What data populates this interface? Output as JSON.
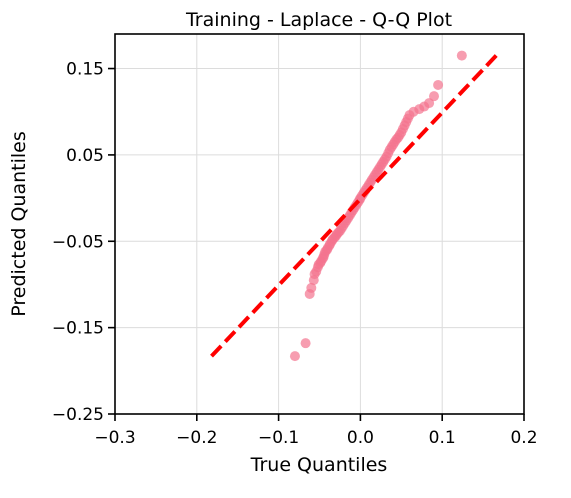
{
  "chart_data": {
    "type": "scatter",
    "title": "Training - Laplace - Q-Q Plot",
    "xlabel": "True Quantiles",
    "ylabel": "Predicted Quantiles",
    "xlim": [
      -0.3,
      0.2
    ],
    "ylim": [
      -0.25,
      0.19
    ],
    "xticks": [
      -0.3,
      -0.2,
      -0.1,
      0.0,
      0.1,
      0.2
    ],
    "xtick_labels": [
      "−0.3",
      "−0.2",
      "−0.1",
      "0.0",
      "0.1",
      "0.2"
    ],
    "yticks": [
      0.15,
      0.05,
      -0.05,
      -0.15,
      -0.25
    ],
    "ytick_labels": [
      "0.15",
      "0.05",
      "−0.05",
      "−0.15",
      "−0.25"
    ],
    "grid": true,
    "points_color": "#f4738f",
    "reference_line": {
      "x": [
        -0.182,
        0.168
      ],
      "y": [
        -0.183,
        0.167
      ],
      "color": "#ff0000",
      "style": "dashed"
    },
    "points": [
      [
        -0.08,
        -0.183
      ],
      [
        -0.067,
        -0.168
      ],
      [
        -0.062,
        -0.111
      ],
      [
        -0.06,
        -0.104
      ],
      [
        -0.057,
        -0.095
      ],
      [
        -0.056,
        -0.088
      ],
      [
        -0.054,
        -0.085
      ],
      [
        -0.052,
        -0.08
      ],
      [
        -0.051,
        -0.077
      ],
      [
        -0.049,
        -0.075
      ],
      [
        -0.048,
        -0.073
      ],
      [
        -0.046,
        -0.07
      ],
      [
        -0.045,
        -0.068
      ],
      [
        -0.044,
        -0.065
      ],
      [
        -0.043,
        -0.062
      ],
      [
        -0.041,
        -0.06
      ],
      [
        -0.04,
        -0.058
      ],
      [
        -0.038,
        -0.055
      ],
      [
        -0.037,
        -0.053
      ],
      [
        -0.035,
        -0.05
      ],
      [
        -0.034,
        -0.048
      ],
      [
        -0.032,
        -0.046
      ],
      [
        -0.03,
        -0.044
      ],
      [
        -0.029,
        -0.042
      ],
      [
        -0.027,
        -0.04
      ],
      [
        -0.025,
        -0.038
      ],
      [
        -0.023,
        -0.035
      ],
      [
        -0.021,
        -0.032
      ],
      [
        -0.019,
        -0.029
      ],
      [
        -0.017,
        -0.026
      ],
      [
        -0.015,
        -0.023
      ],
      [
        -0.013,
        -0.02
      ],
      [
        -0.011,
        -0.017
      ],
      [
        -0.009,
        -0.014
      ],
      [
        -0.007,
        -0.011
      ],
      [
        -0.005,
        -0.008
      ],
      [
        -0.003,
        -0.005
      ],
      [
        -0.001,
        -0.002
      ],
      [
        0.0,
        0.0
      ],
      [
        0.002,
        0.003
      ],
      [
        0.004,
        0.006
      ],
      [
        0.006,
        0.009
      ],
      [
        0.008,
        0.012
      ],
      [
        0.01,
        0.015
      ],
      [
        0.012,
        0.018
      ],
      [
        0.014,
        0.021
      ],
      [
        0.016,
        0.024
      ],
      [
        0.018,
        0.027
      ],
      [
        0.02,
        0.03
      ],
      [
        0.022,
        0.033
      ],
      [
        0.024,
        0.036
      ],
      [
        0.026,
        0.039
      ],
      [
        0.028,
        0.042
      ],
      [
        0.03,
        0.045
      ],
      [
        0.032,
        0.048
      ],
      [
        0.034,
        0.052
      ],
      [
        0.036,
        0.056
      ],
      [
        0.038,
        0.059
      ],
      [
        0.04,
        0.062
      ],
      [
        0.042,
        0.065
      ],
      [
        0.044,
        0.068
      ],
      [
        0.046,
        0.07
      ],
      [
        0.048,
        0.073
      ],
      [
        0.05,
        0.076
      ],
      [
        0.052,
        0.08
      ],
      [
        0.054,
        0.084
      ],
      [
        0.056,
        0.088
      ],
      [
        0.058,
        0.092
      ],
      [
        0.06,
        0.096
      ],
      [
        0.065,
        0.1
      ],
      [
        0.072,
        0.103
      ],
      [
        0.078,
        0.106
      ],
      [
        0.084,
        0.11
      ],
      [
        0.09,
        0.118
      ],
      [
        0.095,
        0.131
      ],
      [
        0.124,
        0.165
      ]
    ]
  }
}
